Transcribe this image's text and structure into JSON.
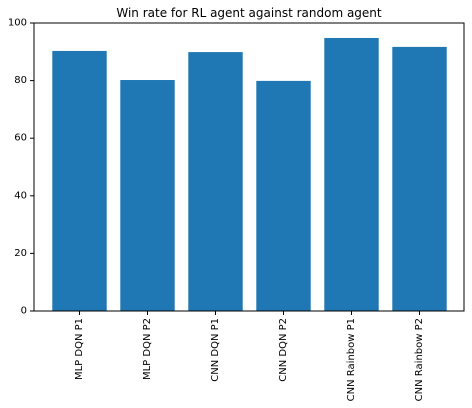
{
  "chart_data": {
    "type": "bar",
    "title": "Win rate for RL agent against random agent",
    "xlabel": "",
    "ylabel": "",
    "categories": [
      "MLP DQN P1",
      "MLP DQN P2",
      "CNN DQN P1",
      "CNN DQN P2",
      "CNN Rainbow P1",
      "CNN Rainbow P2"
    ],
    "values": [
      90.3,
      80.2,
      89.9,
      79.9,
      94.8,
      91.7
    ],
    "ylim": [
      0,
      100
    ],
    "yticks": [
      0,
      20,
      40,
      60,
      80,
      100
    ],
    "grid": false,
    "legend": "none",
    "bar_color": "#1f77b4"
  }
}
